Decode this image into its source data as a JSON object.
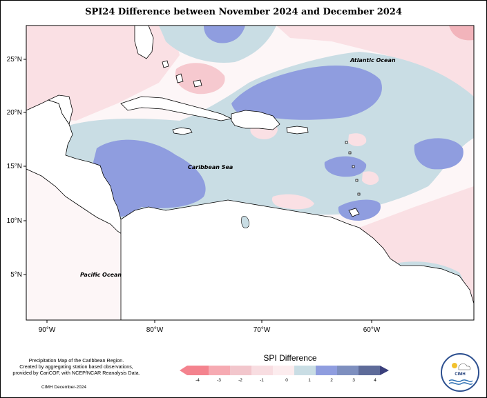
{
  "title": "SPI24 Difference between November 2024 and December 2024",
  "lat_labels": [
    "25°N",
    "20°N",
    "15°N",
    "10°N",
    "5°N"
  ],
  "lon_labels": [
    "90°W",
    "80°W",
    "70°W",
    "60°W"
  ],
  "places": {
    "atlantic": "Atlantic Ocean",
    "caribbean": "Caribbean Sea",
    "pacific": "Pacific Ocean"
  },
  "credit": {
    "line1": "Precipitation Map of the Caribbean Region.",
    "line2": "Created by aggregating station based observations,",
    "line3": "provided by CariCOF, with NCEP/NCAR Reanalysis Data.",
    "date": "CIMH December-2024"
  },
  "legend": {
    "title": "SPI Difference",
    "ticks": [
      "-4",
      "-3",
      "-2",
      "-1",
      "0",
      "1",
      "2",
      "3",
      "4"
    ],
    "colors": [
      "#f4838e",
      "#f6aab2",
      "#f2c6cc",
      "#f8dde1",
      "#fcecee",
      "#c9dde4",
      "#8f9ddf",
      "#7e8fbf",
      "#5e6b99",
      "#3a3f7c"
    ]
  },
  "logo": {
    "text": "CIMH"
  },
  "colors": {
    "neg_strong": "#f6aab2",
    "neg_light": "#fae0e4",
    "neutral": "#ffffff",
    "pos_light": "#c9dde4",
    "pos_strong": "#8f9ddf",
    "pos_dark": "#7e8fbf"
  }
}
